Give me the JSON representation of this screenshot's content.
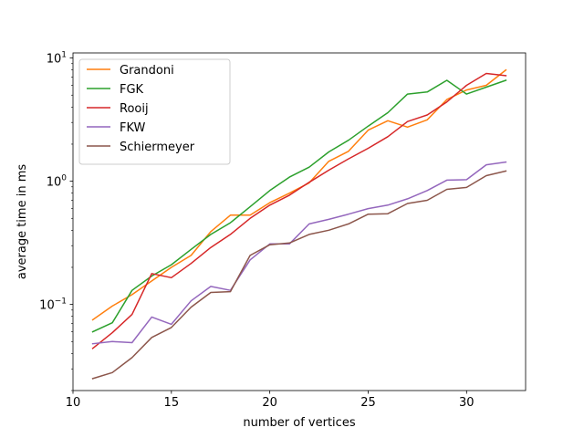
{
  "chart_data": {
    "type": "line",
    "xlabel": "number of vertices",
    "ylabel": "average time in ms",
    "yscale": "log",
    "xlim": [
      10,
      33
    ],
    "ylim": [
      0.02,
      11
    ],
    "x_ticks": [
      10,
      15,
      20,
      25,
      30
    ],
    "y_ticks": [
      {
        "value": 0.1,
        "label": "10",
        "exp": "−1"
      },
      {
        "value": 1,
        "label": "10",
        "exp": "0"
      },
      {
        "value": 10,
        "label": "10",
        "exp": "1"
      }
    ],
    "grid": false,
    "legend_position": "top-left",
    "x": [
      11,
      12,
      13,
      14,
      15,
      16,
      17,
      18,
      19,
      20,
      21,
      22,
      23,
      24,
      25,
      26,
      27,
      28,
      29,
      30,
      31,
      32
    ],
    "series": [
      {
        "name": "Grandoni",
        "color": "#ff7f0e",
        "values": [
          0.075,
          0.097,
          0.12,
          0.155,
          0.2,
          0.25,
          0.39,
          0.53,
          0.53,
          0.67,
          0.8,
          0.97,
          1.45,
          1.75,
          2.6,
          3.1,
          2.75,
          3.15,
          4.6,
          5.5,
          6.0,
          8.0
        ]
      },
      {
        "name": "FGK",
        "color": "#2ca02c",
        "values": [
          0.06,
          0.071,
          0.13,
          0.17,
          0.21,
          0.28,
          0.37,
          0.46,
          0.62,
          0.84,
          1.08,
          1.3,
          1.73,
          2.15,
          2.8,
          3.6,
          5.1,
          5.3,
          6.6,
          5.1,
          5.8,
          6.6
        ]
      },
      {
        "name": "Rooij",
        "color": "#d62728",
        "values": [
          0.044,
          0.059,
          0.083,
          0.178,
          0.165,
          0.215,
          0.29,
          0.37,
          0.5,
          0.64,
          0.77,
          0.98,
          1.23,
          1.52,
          1.85,
          2.3,
          3.05,
          3.45,
          4.4,
          6.0,
          7.5,
          7.2
        ]
      },
      {
        "name": "FKW",
        "color": "#9467bd",
        "values": [
          0.048,
          0.05,
          0.049,
          0.079,
          0.069,
          0.107,
          0.14,
          0.13,
          0.23,
          0.31,
          0.31,
          0.45,
          0.49,
          0.54,
          0.6,
          0.64,
          0.72,
          0.84,
          1.02,
          1.03,
          1.36,
          1.43
        ]
      },
      {
        "name": "Schiermeyer",
        "color": "#8c564b",
        "values": [
          0.025,
          0.028,
          0.037,
          0.054,
          0.065,
          0.095,
          0.125,
          0.127,
          0.25,
          0.305,
          0.315,
          0.37,
          0.4,
          0.45,
          0.54,
          0.545,
          0.66,
          0.7,
          0.86,
          0.89,
          1.11,
          1.21
        ]
      }
    ]
  }
}
